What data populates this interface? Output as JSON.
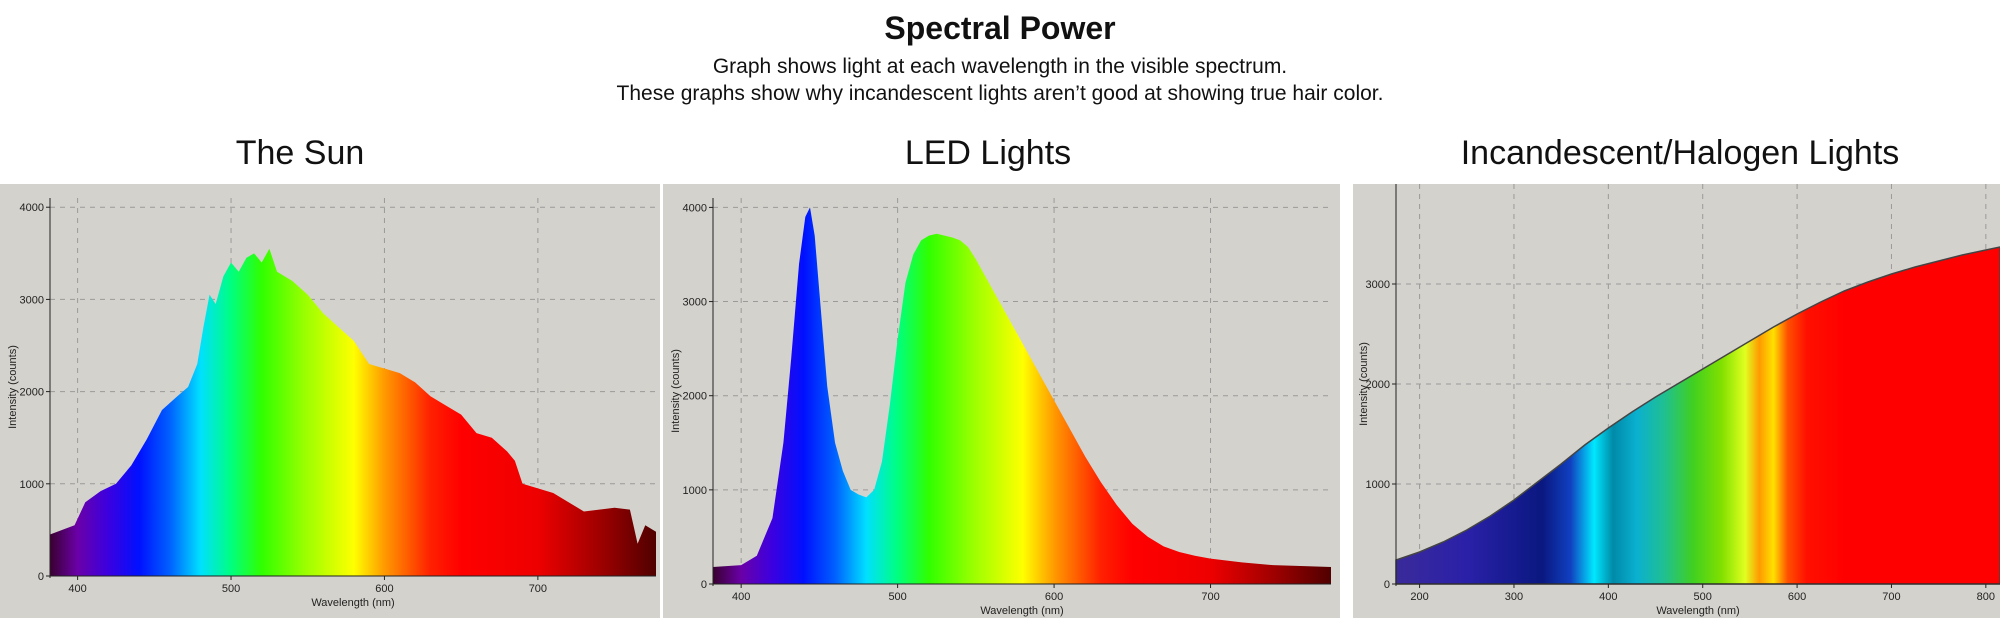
{
  "header": {
    "title": "Spectral Power",
    "subtitle_line1": "Graph shows light at each wavelength in the visible spectrum.",
    "subtitle_line2": "These graphs show why incandescent lights aren’t good at showing true hair color."
  },
  "chart_data": [
    {
      "type": "area",
      "title": "The Sun",
      "xlabel": "Wavelength (nm)",
      "ylabel": "Intensity (counts)",
      "xlim": [
        382,
        777
      ],
      "ylim": [
        0,
        4100
      ],
      "xticks": [
        400,
        500,
        600,
        700
      ],
      "yticks": [
        0,
        1000,
        2000,
        3000,
        4000
      ],
      "grid": true,
      "fill": "spectrum",
      "x": [
        382,
        390,
        398,
        405,
        415,
        425,
        435,
        445,
        455,
        465,
        472,
        478,
        482,
        486,
        490,
        495,
        500,
        505,
        510,
        515,
        520,
        525,
        530,
        540,
        550,
        560,
        570,
        580,
        590,
        600,
        610,
        620,
        630,
        640,
        650,
        660,
        670,
        680,
        685,
        690,
        700,
        710,
        720,
        730,
        740,
        750,
        760,
        765,
        770,
        777
      ],
      "y": [
        450,
        500,
        550,
        800,
        920,
        1000,
        1200,
        1480,
        1800,
        1950,
        2050,
        2300,
        2700,
        3050,
        2950,
        3250,
        3400,
        3300,
        3450,
        3500,
        3400,
        3550,
        3300,
        3200,
        3050,
        2850,
        2700,
        2550,
        2300,
        2250,
        2200,
        2100,
        1950,
        1850,
        1750,
        1550,
        1500,
        1350,
        1250,
        1000,
        950,
        900,
        800,
        700,
        720,
        740,
        720,
        350,
        550,
        480
      ]
    },
    {
      "type": "area",
      "title": "LED Lights",
      "xlabel": "Wavelength (nm)",
      "ylabel": "Intensity (counts)",
      "xlim": [
        382,
        777
      ],
      "ylim": [
        0,
        4100
      ],
      "xticks": [
        400,
        500,
        600,
        700
      ],
      "yticks": [
        0,
        1000,
        2000,
        3000,
        4000
      ],
      "grid": true,
      "fill": "spectrum",
      "x": [
        382,
        400,
        410,
        420,
        427,
        432,
        437,
        441,
        444,
        447,
        450,
        455,
        460,
        465,
        470,
        475,
        480,
        485,
        490,
        495,
        500,
        505,
        510,
        515,
        520,
        525,
        530,
        535,
        540,
        545,
        550,
        560,
        570,
        580,
        590,
        600,
        610,
        620,
        630,
        640,
        650,
        660,
        670,
        680,
        690,
        700,
        720,
        740,
        760,
        777
      ],
      "y": [
        180,
        200,
        300,
        700,
        1500,
        2400,
        3400,
        3900,
        4000,
        3700,
        3100,
        2100,
        1500,
        1200,
        1000,
        950,
        920,
        1000,
        1300,
        1900,
        2600,
        3200,
        3500,
        3650,
        3700,
        3720,
        3700,
        3680,
        3650,
        3580,
        3450,
        3150,
        2850,
        2550,
        2250,
        1950,
        1650,
        1350,
        1080,
        840,
        640,
        500,
        400,
        340,
        300,
        270,
        230,
        200,
        190,
        180
      ]
    },
    {
      "type": "area",
      "title": "Incandescent/Halogen Lights",
      "xlabel": "Wavelength (nm)",
      "ylabel": "Intensity (counts)",
      "xlim": [
        175,
        815
      ],
      "ylim": [
        0,
        4000
      ],
      "xticks": [
        200,
        300,
        400,
        500,
        600,
        700,
        800
      ],
      "yticks": [
        0,
        1000,
        2000,
        3000
      ],
      "grid": true,
      "fill": "spectrum",
      "x": [
        175,
        200,
        225,
        250,
        275,
        300,
        325,
        350,
        375,
        400,
        425,
        450,
        475,
        500,
        525,
        550,
        575,
        600,
        625,
        650,
        675,
        700,
        725,
        750,
        775,
        800,
        815
      ],
      "y": [
        240,
        320,
        420,
        540,
        680,
        840,
        1020,
        1200,
        1390,
        1560,
        1720,
        1870,
        2010,
        2150,
        2290,
        2430,
        2570,
        2700,
        2820,
        2930,
        3020,
        3100,
        3170,
        3230,
        3290,
        3340,
        3370
      ]
    }
  ]
}
